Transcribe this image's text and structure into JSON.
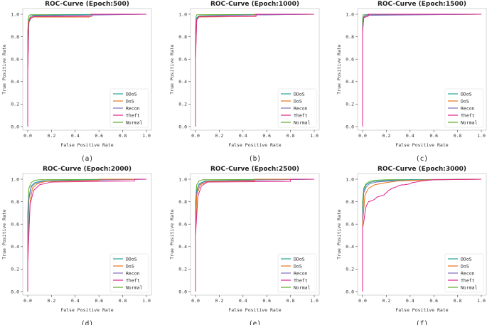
{
  "colors": {
    "DDoS": "#26a69a",
    "DoS": "#e8751a",
    "Recon": "#7e6fb8",
    "Theft": "#e0218a",
    "Normal": "#5aab2a",
    "axis": "#444444",
    "grid_text": "#333333"
  },
  "chart_data": [
    {
      "type": "line",
      "panel_label": "(a)",
      "title": "ROC-Curve (Epoch:500)",
      "xlabel": "False Positive Rate",
      "ylabel": "True Positive Rate",
      "xlim": [
        0.0,
        1.0
      ],
      "ylim": [
        0.0,
        1.0
      ],
      "x_ticks": [
        "0.0",
        "0.2",
        "0.4",
        "0.6",
        "0.8",
        "1.0"
      ],
      "y_ticks": [
        "0.0",
        "0.2",
        "0.4",
        "0.6",
        "0.8",
        "1.0"
      ],
      "legend": [
        "DDoS",
        "DoS",
        "Recon",
        "Theft",
        "Normal"
      ],
      "legend_position": "lower-right",
      "series": [
        {
          "name": "Normal",
          "x": [
            0,
            0,
            0.005,
            0.01,
            0.02,
            1.0
          ],
          "y": [
            0,
            0.85,
            0.96,
            0.985,
            0.995,
            1.0
          ]
        },
        {
          "name": "DDoS",
          "x": [
            0,
            0,
            0.01,
            0.02,
            0.04,
            0.35,
            1.0
          ],
          "y": [
            0,
            0.6,
            0.95,
            0.975,
            0.99,
            0.995,
            1.0
          ]
        },
        {
          "name": "Recon",
          "x": [
            0,
            0,
            0.01,
            0.03,
            0.05,
            0.4,
            1.0
          ],
          "y": [
            0,
            0.5,
            0.93,
            0.97,
            0.985,
            0.99,
            1.0
          ]
        },
        {
          "name": "DoS",
          "x": [
            0,
            0,
            0.01,
            0.02,
            0.05,
            0.52,
            0.52,
            1.0
          ],
          "y": [
            0,
            0.55,
            0.94,
            0.97,
            0.975,
            0.975,
            1.0,
            1.0
          ]
        },
        {
          "name": "Theft",
          "x": [
            0,
            0,
            0.01,
            0.02,
            0.05,
            0.54,
            0.54,
            1.0
          ],
          "y": [
            0,
            0.5,
            0.93,
            0.96,
            0.98,
            0.98,
            1.0,
            1.0
          ]
        }
      ]
    },
    {
      "type": "line",
      "panel_label": "(b)",
      "title": "ROC-Curve (Epoch:1000)",
      "xlabel": "False Positive Rate",
      "ylabel": "True Positive Rate",
      "xlim": [
        0.0,
        1.0
      ],
      "ylim": [
        0.0,
        1.0
      ],
      "x_ticks": [
        "0.0",
        "0.2",
        "0.4",
        "0.6",
        "0.8",
        "1.0"
      ],
      "y_ticks": [
        "0.0",
        "0.2",
        "0.4",
        "0.6",
        "0.8",
        "1.0"
      ],
      "legend": [
        "DDoS",
        "DoS",
        "Recon",
        "Theft",
        "Normal"
      ],
      "legend_position": "lower-right",
      "series": [
        {
          "name": "Normal",
          "x": [
            0,
            0,
            0.005,
            0.01,
            1.0
          ],
          "y": [
            0,
            0.9,
            0.98,
            0.995,
            1.0
          ]
        },
        {
          "name": "DDoS",
          "x": [
            0,
            0,
            0.01,
            0.03,
            0.2,
            1.0
          ],
          "y": [
            0,
            0.7,
            0.97,
            0.985,
            0.99,
            1.0
          ]
        },
        {
          "name": "Recon",
          "x": [
            0,
            0,
            0.01,
            0.03,
            0.25,
            1.0
          ],
          "y": [
            0,
            0.65,
            0.96,
            0.98,
            0.99,
            1.0
          ]
        },
        {
          "name": "DoS",
          "x": [
            0,
            0,
            0.01,
            0.03,
            0.5,
            0.5,
            1.0
          ],
          "y": [
            0,
            0.6,
            0.95,
            0.975,
            0.98,
            1.0,
            1.0
          ]
        },
        {
          "name": "Theft",
          "x": [
            0,
            0,
            0.01,
            0.03,
            0.51,
            0.51,
            1.0
          ],
          "y": [
            0,
            0.6,
            0.95,
            0.98,
            0.98,
            1.0,
            1.0
          ]
        }
      ]
    },
    {
      "type": "line",
      "panel_label": "(c)",
      "title": "ROC-Curve (Epoch:1500)",
      "xlabel": "False Positive Rate",
      "ylabel": "True Positive Rate",
      "xlim": [
        0.0,
        1.0
      ],
      "ylim": [
        0.0,
        1.0
      ],
      "x_ticks": [
        "0.0",
        "0.2",
        "0.4",
        "0.6",
        "0.8",
        "1.0"
      ],
      "y_ticks": [
        "0.0",
        "0.2",
        "0.4",
        "0.6",
        "0.8",
        "1.0"
      ],
      "legend": [
        "DDoS",
        "DoS",
        "Recon",
        "Theft",
        "Normal"
      ],
      "legend_position": "lower-right",
      "series": [
        {
          "name": "Normal",
          "x": [
            0,
            0,
            0.005,
            1.0
          ],
          "y": [
            0,
            0.95,
            0.995,
            1.0
          ]
        },
        {
          "name": "DDoS",
          "x": [
            0,
            0,
            0.01,
            0.03,
            1.0
          ],
          "y": [
            0,
            0.9,
            0.98,
            0.995,
            1.0
          ]
        },
        {
          "name": "Recon",
          "x": [
            0,
            0,
            0.01,
            0.03,
            1.0
          ],
          "y": [
            0,
            0.85,
            0.975,
            0.99,
            1.0
          ]
        },
        {
          "name": "DoS",
          "x": [
            0,
            0,
            0.01,
            0.04,
            0.04,
            1.0
          ],
          "y": [
            0,
            0.85,
            0.97,
            0.98,
            1.0,
            1.0
          ]
        },
        {
          "name": "Theft",
          "x": [
            0,
            0,
            0.01,
            0.05,
            0.05,
            1.0
          ],
          "y": [
            0,
            0.85,
            0.97,
            0.985,
            1.0,
            1.0
          ]
        }
      ]
    },
    {
      "type": "line",
      "panel_label": "(d)",
      "title": "ROC-Curve (Epoch:2000)",
      "xlabel": "False Positive Rate",
      "ylabel": "True Positive Rate",
      "xlim": [
        0.0,
        1.0
      ],
      "ylim": [
        0.0,
        1.0
      ],
      "x_ticks": [
        "0.0",
        "0.2",
        "0.4",
        "0.6",
        "0.8",
        "1.0"
      ],
      "y_ticks": [
        "0.0",
        "0.2",
        "0.4",
        "0.6",
        "0.8",
        "1.0"
      ],
      "legend": [
        "DDoS",
        "DoS",
        "Recon",
        "Theft",
        "Normal"
      ],
      "legend_position": "lower-right",
      "series": [
        {
          "name": "Normal",
          "x": [
            0,
            0,
            0.01,
            0.03,
            0.06,
            0.1,
            1.0
          ],
          "y": [
            0,
            0.7,
            0.92,
            0.97,
            0.99,
            0.995,
            1.0
          ]
        },
        {
          "name": "DDoS",
          "x": [
            0,
            0,
            0.01,
            0.03,
            0.06,
            0.12,
            0.3,
            1.0
          ],
          "y": [
            0,
            0.4,
            0.85,
            0.94,
            0.97,
            0.985,
            0.99,
            1.0
          ]
        },
        {
          "name": "Recon",
          "x": [
            0,
            0,
            0.01,
            0.03,
            0.06,
            0.12,
            0.5,
            1.0
          ],
          "y": [
            0,
            0.35,
            0.82,
            0.93,
            0.96,
            0.98,
            0.99,
            1.0
          ]
        },
        {
          "name": "DoS",
          "x": [
            0,
            0,
            0.02,
            0.04,
            0.08,
            0.15,
            0.6,
            0.6,
            1.0
          ],
          "y": [
            0,
            0.3,
            0.8,
            0.92,
            0.96,
            0.98,
            0.99,
            1.0,
            1.0
          ]
        },
        {
          "name": "Theft",
          "x": [
            0,
            0,
            0.02,
            0.05,
            0.1,
            0.2,
            0.9,
            0.9,
            1.0
          ],
          "y": [
            0,
            0.25,
            0.78,
            0.9,
            0.95,
            0.975,
            0.985,
            1.0,
            1.0
          ]
        }
      ]
    },
    {
      "type": "line",
      "panel_label": "(e)",
      "title": "ROC-Curve (Epoch:2500)",
      "xlabel": "False Positive Rate",
      "ylabel": "True Positive Rate",
      "xlim": [
        0.0,
        1.0
      ],
      "ylim": [
        0.0,
        1.0
      ],
      "x_ticks": [
        "0.0",
        "0.2",
        "0.4",
        "0.6",
        "0.8",
        "1.0"
      ],
      "y_ticks": [
        "0.0",
        "0.2",
        "0.4",
        "0.6",
        "0.8",
        "1.0"
      ],
      "legend": [
        "DDoS",
        "DoS",
        "Recon",
        "Theft",
        "Normal"
      ],
      "legend_position": "lower-right",
      "series": [
        {
          "name": "Normal",
          "x": [
            0,
            0,
            0.01,
            0.03,
            0.06,
            1.0
          ],
          "y": [
            0,
            0.8,
            0.95,
            0.985,
            0.995,
            1.0
          ]
        },
        {
          "name": "DDoS",
          "x": [
            0,
            0,
            0.01,
            0.03,
            0.08,
            0.3,
            1.0
          ],
          "y": [
            0,
            0.6,
            0.9,
            0.96,
            0.985,
            0.99,
            1.0
          ]
        },
        {
          "name": "Recon",
          "x": [
            0,
            0,
            0.01,
            0.03,
            0.08,
            0.4,
            1.0
          ],
          "y": [
            0,
            0.55,
            0.88,
            0.95,
            0.98,
            0.99,
            1.0
          ]
        },
        {
          "name": "DoS",
          "x": [
            0,
            0,
            0.01,
            0.04,
            0.1,
            0.5,
            0.5,
            1.0
          ],
          "y": [
            0,
            0.5,
            0.86,
            0.95,
            0.98,
            0.985,
            1.0,
            1.0
          ]
        },
        {
          "name": "Theft",
          "x": [
            0,
            0,
            0.02,
            0.05,
            0.1,
            0.8,
            0.8,
            1.0
          ],
          "y": [
            0,
            0.5,
            0.85,
            0.94,
            0.975,
            0.98,
            1.0,
            1.0
          ]
        }
      ]
    },
    {
      "type": "line",
      "panel_label": "(f)",
      "title": "ROC-Curve (Epoch:3000)",
      "xlabel": "False Positive Rate",
      "ylabel": "True Positive Rate",
      "xlim": [
        0.0,
        1.0
      ],
      "ylim": [
        0.0,
        1.0
      ],
      "x_ticks": [
        "0.0",
        "0.2",
        "0.4",
        "0.6",
        "0.8",
        "1.0"
      ],
      "y_ticks": [
        "0.0",
        "0.2",
        "0.4",
        "0.6",
        "0.8",
        "1.0"
      ],
      "legend": [
        "DDoS",
        "DoS",
        "Recon",
        "Theft",
        "Normal"
      ],
      "legend_position": "lower-right",
      "series": [
        {
          "name": "Normal",
          "x": [
            0,
            0,
            0.01,
            0.03,
            0.06,
            0.1,
            0.2,
            1.0
          ],
          "y": [
            0,
            0.8,
            0.92,
            0.96,
            0.98,
            0.99,
            0.995,
            1.0
          ]
        },
        {
          "name": "DDoS",
          "x": [
            0,
            0,
            0.01,
            0.03,
            0.06,
            0.1,
            0.2,
            0.4,
            1.0
          ],
          "y": [
            0,
            0.7,
            0.9,
            0.95,
            0.97,
            0.98,
            0.99,
            0.995,
            1.0
          ]
        },
        {
          "name": "Recon",
          "x": [
            0,
            0,
            0.01,
            0.03,
            0.06,
            0.12,
            0.25,
            0.6,
            1.0
          ],
          "y": [
            0,
            0.65,
            0.88,
            0.93,
            0.96,
            0.975,
            0.985,
            0.995,
            1.0
          ]
        },
        {
          "name": "DoS",
          "x": [
            0,
            0,
            0.02,
            0.05,
            0.1,
            0.2,
            0.3,
            0.6,
            1.0
          ],
          "y": [
            0,
            0.6,
            0.86,
            0.92,
            0.95,
            0.97,
            0.985,
            0.995,
            1.0
          ]
        },
        {
          "name": "Theft",
          "x": [
            0,
            0,
            0.01,
            0.02,
            0.03,
            0.05,
            0.08,
            0.1,
            0.12,
            0.15,
            0.18,
            0.2,
            0.22,
            0.25,
            0.28,
            0.3,
            0.33,
            0.35,
            0.38,
            0.4,
            0.42,
            0.45,
            0.5,
            0.55,
            0.6,
            1.0
          ],
          "y": [
            0,
            0.57,
            0.62,
            0.7,
            0.76,
            0.8,
            0.81,
            0.82,
            0.84,
            0.85,
            0.86,
            0.88,
            0.9,
            0.92,
            0.93,
            0.94,
            0.95,
            0.95,
            0.955,
            0.96,
            0.97,
            0.975,
            0.985,
            0.99,
            0.995,
            1.0
          ]
        }
      ]
    }
  ]
}
